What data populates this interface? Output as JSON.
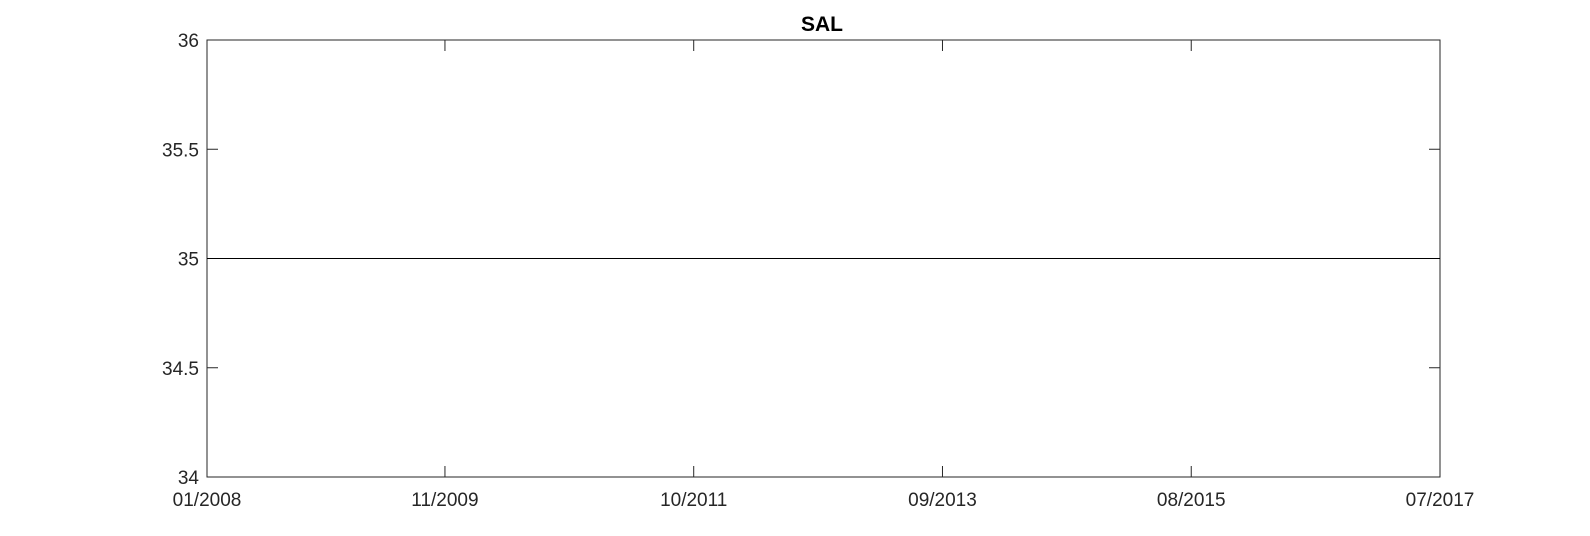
{
  "chart_data": {
    "type": "line",
    "title": "SAL",
    "xlabel": "",
    "ylabel": "",
    "x_ticks": [
      "01/2008",
      "11/2009",
      "10/2011",
      "09/2013",
      "08/2015",
      "07/2017"
    ],
    "y_ticks": [
      "34",
      "34.5",
      "35",
      "35.5",
      "36"
    ],
    "xlim": [
      "01/2008",
      "07/2017"
    ],
    "ylim": [
      34,
      36
    ],
    "grid": false,
    "colors": {
      "axes": "#262626",
      "series": "#000000"
    },
    "series": [
      {
        "x": [
          "01/2008",
          "07/2017"
        ],
        "values": [
          35,
          35
        ]
      }
    ]
  }
}
